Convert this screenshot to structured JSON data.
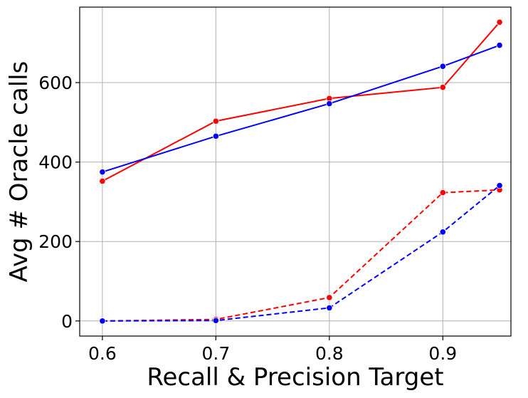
{
  "chart_data": {
    "type": "line",
    "title": "",
    "xlabel": "Recall & Precision Target",
    "ylabel": "Avg # Oracle calls",
    "x": [
      0.6,
      0.7,
      0.8,
      0.9,
      0.95
    ],
    "xlim": [
      0.58,
      0.96
    ],
    "ylim": [
      -38,
      790
    ],
    "xticks": [
      0.6,
      0.7,
      0.8,
      0.9
    ],
    "yticks": [
      0,
      200,
      400,
      600
    ],
    "xtick_labels": [
      "0.6",
      "0.7",
      "0.8",
      "0.9"
    ],
    "ytick_labels": [
      "0",
      "200",
      "400",
      "600"
    ],
    "grid": true,
    "legend": "none",
    "series": [
      {
        "color": "#ff0000",
        "dash": "solid",
        "values": [
          352,
          503,
          560,
          588,
          752
        ]
      },
      {
        "color": "#0000ff",
        "dash": "solid",
        "values": [
          375,
          465,
          547,
          641,
          694
        ]
      },
      {
        "color": "#ff0000",
        "dash": "dashed",
        "values": [
          0,
          4,
          59,
          323,
          330
        ]
      },
      {
        "color": "#0000ff",
        "dash": "dashed",
        "values": [
          0,
          1,
          33,
          224,
          341
        ]
      }
    ]
  }
}
